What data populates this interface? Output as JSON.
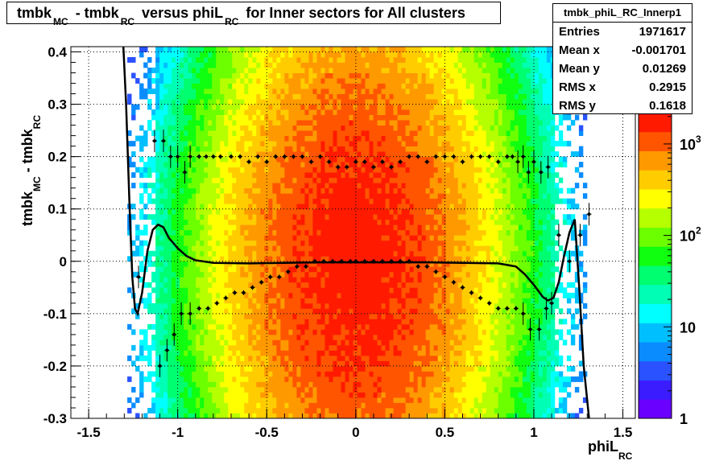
{
  "title": {
    "text": "tmbk_MC - tmbk_RC versus phiL_RC for Inner sectors for All clusters"
  },
  "stats": {
    "name": "tmbk_phiL_RC_Innerp1",
    "rows": [
      {
        "label": "Entries",
        "value": "1971617"
      },
      {
        "label": "Mean x",
        "value": "-0.001701"
      },
      {
        "label": "Mean y",
        "value": "0.01269"
      },
      {
        "label": "RMS x",
        "value": "0.2915"
      },
      {
        "label": "RMS y",
        "value": "0.1618"
      }
    ]
  },
  "colors": {
    "palette": [
      "#6a00ff",
      "#3b1cff",
      "#2a52ff",
      "#0a8cff",
      "#00bfff",
      "#00ffff",
      "#00ffb5",
      "#00ff70",
      "#10ff10",
      "#6cff00",
      "#b6ff00",
      "#ffff00",
      "#ffcc00",
      "#ff9900",
      "#ff5500",
      "#ff1a00"
    ],
    "axis": "#000000",
    "grid": "#000000",
    "background": "#ffffff"
  },
  "chart_data": {
    "type": "heatmap",
    "xlabel": "phiL_RC",
    "ylabel": "tmbk_MC - tmbk_RC",
    "xlim": [
      -1.6,
      1.57
    ],
    "ylim": [
      -0.3,
      0.41
    ],
    "xticks": [
      -1.5,
      -1,
      -0.5,
      0,
      0.5,
      1,
      1.5
    ],
    "xtick_labels": [
      "-1.5",
      "-1",
      "-0.5",
      "0",
      "0.5",
      "1",
      "1.5"
    ],
    "yticks": [
      -0.3,
      -0.2,
      -0.1,
      0,
      0.1,
      0.2,
      0.3,
      0.4
    ],
    "ytick_labels": [
      "-0.3",
      "-0.2",
      "-0.1",
      "0",
      "0.1",
      "0.2",
      "0.3",
      "0.4"
    ],
    "grid": true,
    "z_scale": "log",
    "z_axis": {
      "ticks": [
        {
          "value": 1,
          "label": "1"
        },
        {
          "value": 10,
          "label": "10"
        },
        {
          "value": 100,
          "label": "10",
          "exponent": "2"
        },
        {
          "value": 1000,
          "label": "10",
          "exponent": "3"
        }
      ],
      "zmin": 1,
      "zmax": 2200
    },
    "distribution": {
      "peak": 1900,
      "center_x": 0.0,
      "center_y": 0.0,
      "sigma_x": 0.38,
      "sigma_y": 0.26,
      "x_extent": 1.27
    },
    "series": [
      {
        "kind": "markers",
        "points": [
          [
            -1.13,
            0.23
          ],
          [
            -1.08,
            0.23
          ],
          [
            -1.04,
            0.2
          ],
          [
            -1.0,
            0.2
          ],
          [
            -0.96,
            0.17
          ],
          [
            -0.93,
            0.2
          ],
          [
            -0.88,
            0.2
          ],
          [
            -0.84,
            0.2
          ],
          [
            -0.8,
            0.2
          ],
          [
            -0.76,
            0.2
          ],
          [
            -0.7,
            0.2
          ],
          [
            -0.65,
            0.2
          ],
          [
            -0.6,
            0.19
          ],
          [
            -0.55,
            0.2
          ],
          [
            -0.5,
            0.19
          ],
          [
            -0.45,
            0.2
          ],
          [
            -0.4,
            0.2
          ],
          [
            -0.35,
            0.2
          ],
          [
            -0.3,
            0.2
          ],
          [
            -0.25,
            0.19
          ],
          [
            -0.2,
            0.2
          ],
          [
            -0.15,
            0.19
          ],
          [
            -0.1,
            0.18
          ],
          [
            -0.05,
            0.18
          ],
          [
            0.0,
            0.19
          ],
          [
            0.05,
            0.19
          ],
          [
            0.1,
            0.18
          ],
          [
            0.15,
            0.19
          ],
          [
            0.2,
            0.18
          ],
          [
            0.25,
            0.19
          ],
          [
            0.3,
            0.2
          ],
          [
            0.35,
            0.2
          ],
          [
            0.4,
            0.19
          ],
          [
            0.45,
            0.2
          ],
          [
            0.5,
            0.2
          ],
          [
            0.55,
            0.2
          ],
          [
            0.6,
            0.19
          ],
          [
            0.65,
            0.2
          ],
          [
            0.7,
            0.2
          ],
          [
            0.75,
            0.2
          ],
          [
            0.8,
            0.19
          ],
          [
            0.85,
            0.2
          ],
          [
            0.88,
            0.2
          ],
          [
            0.91,
            0.19
          ],
          [
            0.94,
            0.2
          ],
          [
            0.97,
            0.17
          ],
          [
            1.0,
            0.19
          ],
          [
            1.04,
            0.17
          ],
          [
            1.08,
            0.18
          ]
        ]
      },
      {
        "kind": "markers",
        "points": [
          [
            -1.22,
            -0.03
          ],
          [
            -1.1,
            -0.2
          ],
          [
            -1.06,
            -0.17
          ],
          [
            -1.02,
            -0.14
          ],
          [
            -0.98,
            -0.1
          ],
          [
            -0.93,
            -0.1
          ],
          [
            -0.88,
            -0.09
          ],
          [
            -0.83,
            -0.09
          ],
          [
            -0.78,
            -0.08
          ],
          [
            -0.73,
            -0.07
          ],
          [
            -0.68,
            -0.06
          ],
          [
            -0.63,
            -0.06
          ],
          [
            -0.58,
            -0.05
          ],
          [
            -0.53,
            -0.04
          ],
          [
            -0.48,
            -0.03
          ],
          [
            -0.43,
            -0.03
          ],
          [
            -0.38,
            -0.02
          ],
          [
            -0.33,
            -0.01
          ],
          [
            -0.28,
            -0.01
          ],
          [
            -0.23,
            0.0
          ],
          [
            -0.18,
            0.0
          ],
          [
            -0.13,
            0.0
          ],
          [
            -0.08,
            0.0
          ],
          [
            -0.03,
            0.0
          ],
          [
            0.0,
            0.0
          ],
          [
            0.05,
            0.0
          ],
          [
            0.1,
            0.0
          ],
          [
            0.15,
            0.0
          ],
          [
            0.2,
            0.0
          ],
          [
            0.25,
            0.0
          ],
          [
            0.3,
            0.0
          ],
          [
            0.35,
            -0.01
          ],
          [
            0.4,
            -0.01
          ],
          [
            0.45,
            -0.02
          ],
          [
            0.5,
            -0.03
          ],
          [
            0.55,
            -0.04
          ],
          [
            0.6,
            -0.05
          ],
          [
            0.65,
            -0.06
          ],
          [
            0.7,
            -0.07
          ],
          [
            0.75,
            -0.08
          ],
          [
            0.8,
            -0.09
          ],
          [
            0.85,
            -0.09
          ],
          [
            0.9,
            -0.09
          ],
          [
            0.94,
            -0.1
          ],
          [
            0.98,
            -0.13
          ],
          [
            1.03,
            -0.13
          ],
          [
            1.07,
            -0.09
          ],
          [
            1.1,
            -0.08
          ],
          [
            1.14,
            0.05
          ],
          [
            1.2,
            0.0
          ],
          [
            1.26,
            0.05
          ],
          [
            1.31,
            0.09
          ]
        ]
      },
      {
        "kind": "curve",
        "points": [
          [
            -1.305,
            0.41
          ],
          [
            -1.29,
            0.3
          ],
          [
            -1.27,
            0.1
          ],
          [
            -1.255,
            -0.03
          ],
          [
            -1.24,
            -0.09
          ],
          [
            -1.225,
            -0.1
          ],
          [
            -1.2,
            -0.06
          ],
          [
            -1.17,
            0.02
          ],
          [
            -1.14,
            0.06
          ],
          [
            -1.11,
            0.07
          ],
          [
            -1.08,
            0.065
          ],
          [
            -1.05,
            0.045
          ],
          [
            -1.0,
            0.025
          ],
          [
            -0.95,
            0.01
          ],
          [
            -0.9,
            0.002
          ],
          [
            -0.8,
            -0.003
          ],
          [
            -0.6,
            -0.004
          ],
          [
            -0.4,
            -0.003
          ],
          [
            -0.2,
            -0.002
          ],
          [
            0.0,
            -0.002
          ],
          [
            0.2,
            -0.002
          ],
          [
            0.4,
            -0.002
          ],
          [
            0.6,
            -0.003
          ],
          [
            0.8,
            -0.004
          ],
          [
            0.9,
            -0.01
          ],
          [
            0.95,
            -0.025
          ],
          [
            1.0,
            -0.045
          ],
          [
            1.05,
            -0.068
          ],
          [
            1.08,
            -0.075
          ],
          [
            1.11,
            -0.07
          ],
          [
            1.14,
            -0.04
          ],
          [
            1.17,
            0.01
          ],
          [
            1.2,
            0.055
          ],
          [
            1.23,
            0.08
          ],
          [
            1.255,
            -0.05
          ],
          [
            1.28,
            -0.2
          ],
          [
            1.31,
            -0.3
          ]
        ]
      }
    ]
  }
}
